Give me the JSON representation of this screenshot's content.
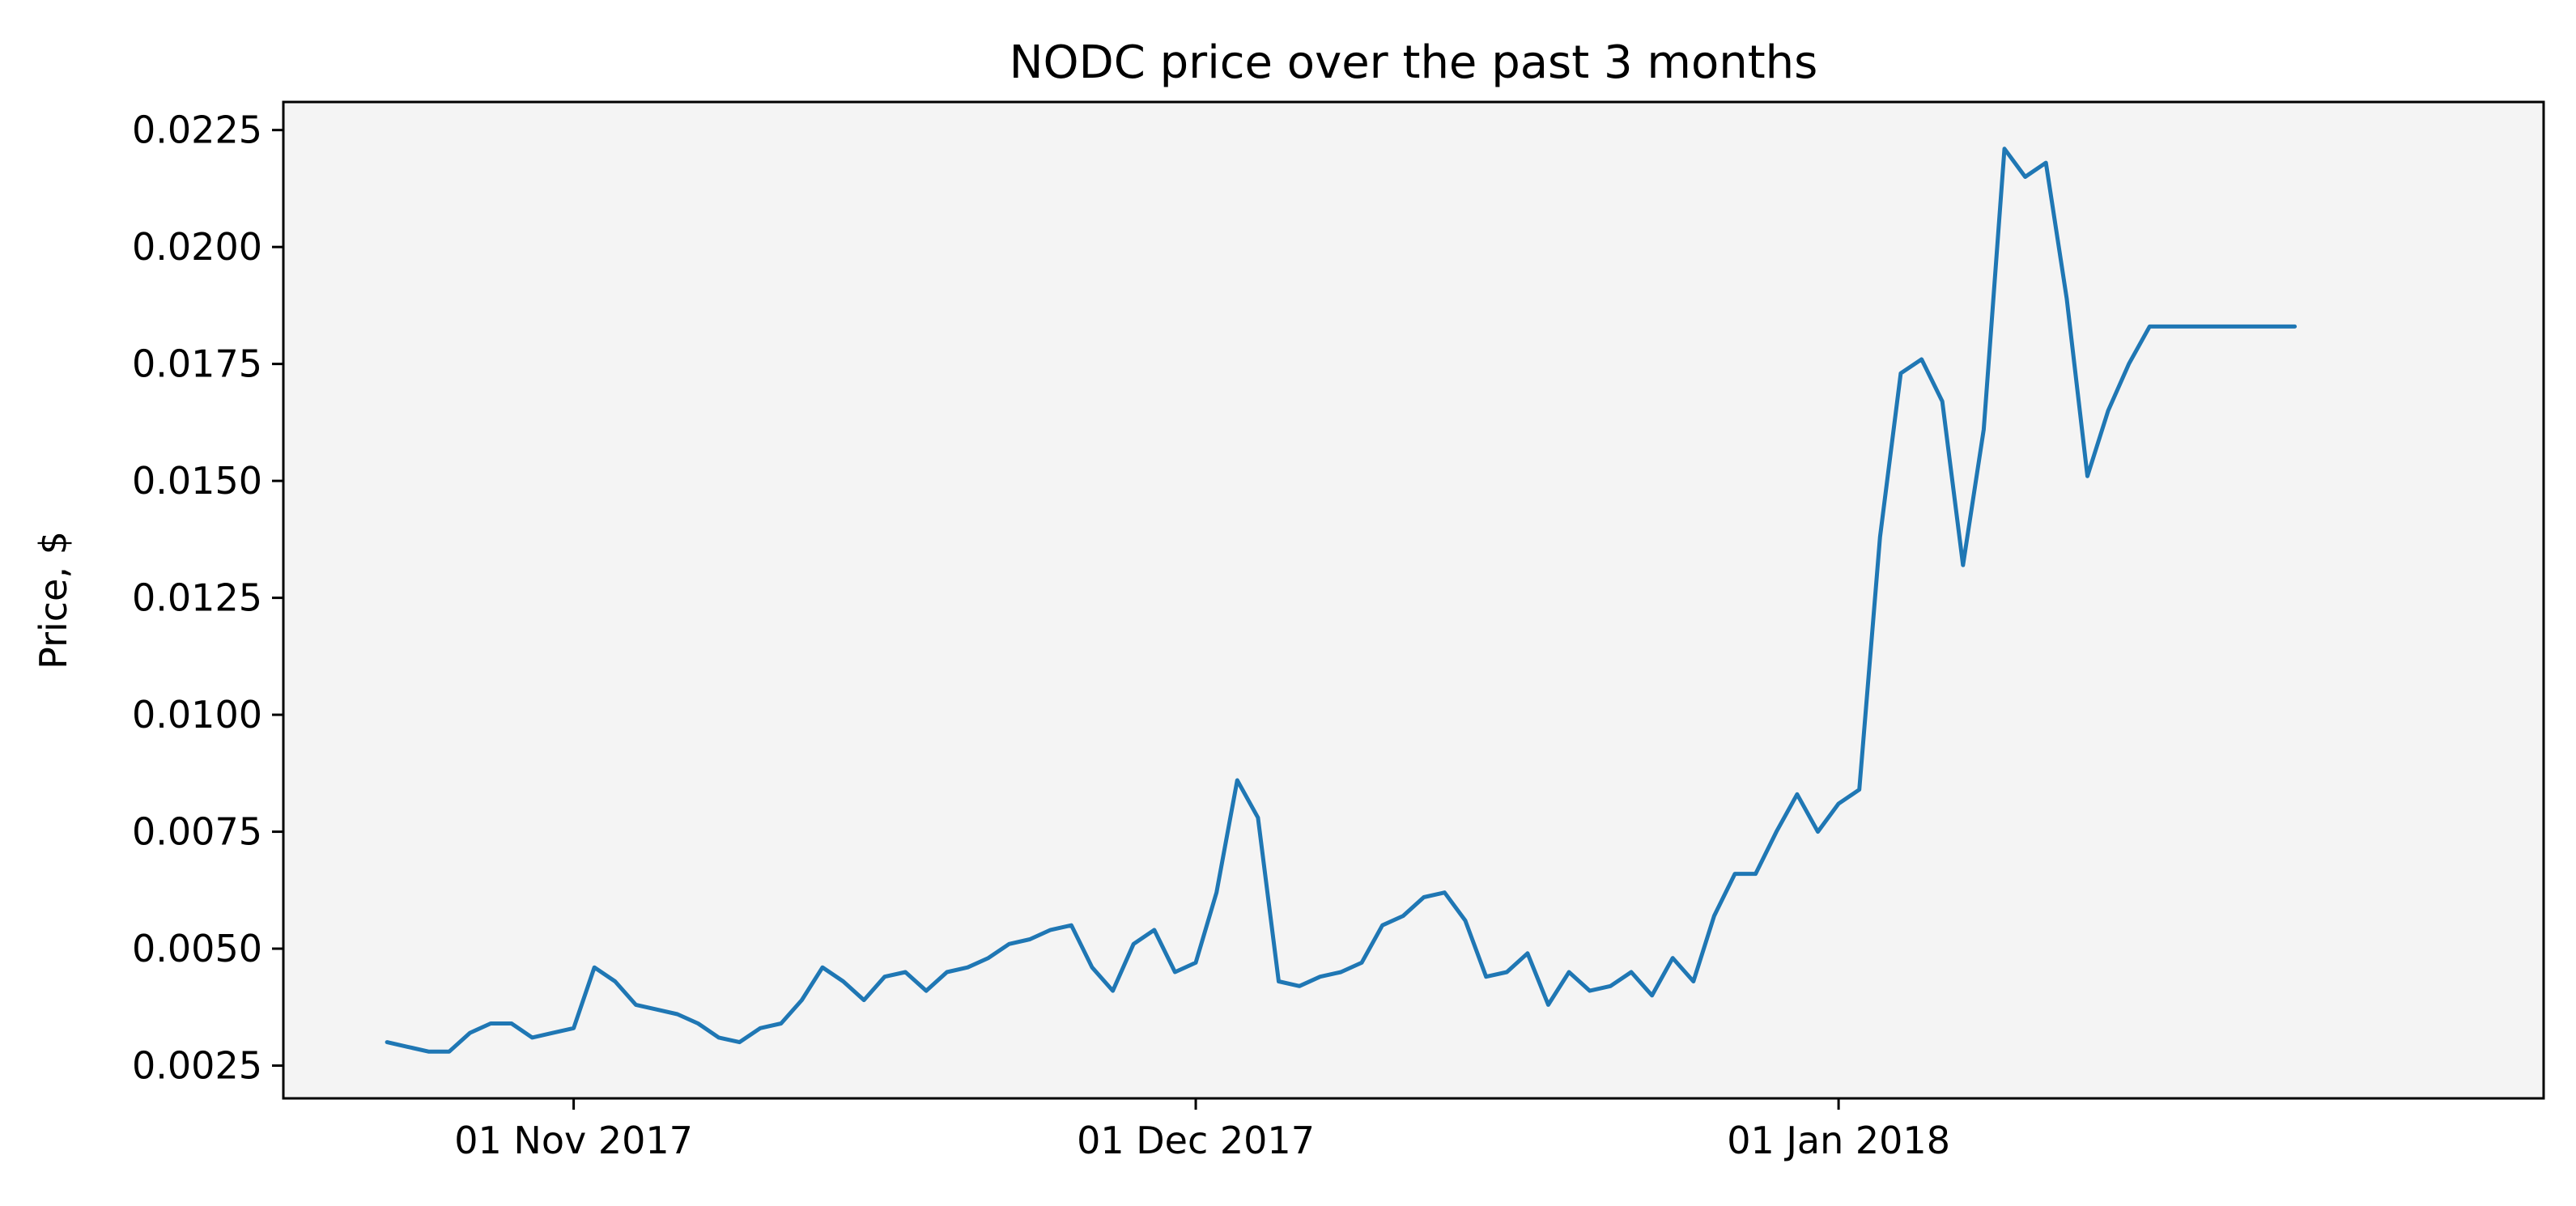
{
  "chart_data": {
    "type": "line",
    "title": "NODC price over the past 3 months",
    "xlabel": "",
    "ylabel": "Price, $",
    "grid": false,
    "legend": "none",
    "colors": {
      "line": "#1f77b4",
      "plot_bg": "#f4f4f4",
      "axes": "#000000"
    },
    "xlim": [
      "2017-10-18",
      "2018-02-04"
    ],
    "ylim": [
      0.0018,
      0.0231
    ],
    "x_ticks": [
      {
        "date": "2017-11-01",
        "label": "01 Nov 2017"
      },
      {
        "date": "2017-12-01",
        "label": "01 Dec 2017"
      },
      {
        "date": "2018-01-01",
        "label": "01 Jan 2018"
      }
    ],
    "y_ticks": [
      {
        "value": 0.0025,
        "label": "0.0025"
      },
      {
        "value": 0.005,
        "label": "0.0050"
      },
      {
        "value": 0.0075,
        "label": "0.0075"
      },
      {
        "value": 0.01,
        "label": "0.0100"
      },
      {
        "value": 0.0125,
        "label": "0.0125"
      },
      {
        "value": 0.015,
        "label": "0.0150"
      },
      {
        "value": 0.0175,
        "label": "0.0175"
      },
      {
        "value": 0.02,
        "label": "0.0200"
      },
      {
        "value": 0.0225,
        "label": "0.0225"
      }
    ],
    "series": [
      {
        "x": [
          "2017-10-23",
          "2017-10-24",
          "2017-10-25",
          "2017-10-26",
          "2017-10-27",
          "2017-10-28",
          "2017-10-29",
          "2017-10-30",
          "2017-10-31",
          "2017-11-01",
          "2017-11-02",
          "2017-11-03",
          "2017-11-04",
          "2017-11-05",
          "2017-11-06",
          "2017-11-07",
          "2017-11-08",
          "2017-11-09",
          "2017-11-10",
          "2017-11-11",
          "2017-11-12",
          "2017-11-13",
          "2017-11-14",
          "2017-11-15",
          "2017-11-16",
          "2017-11-17",
          "2017-11-18",
          "2017-11-19",
          "2017-11-20",
          "2017-11-21",
          "2017-11-22",
          "2017-11-23",
          "2017-11-24",
          "2017-11-25",
          "2017-11-26",
          "2017-11-27",
          "2017-11-28",
          "2017-11-29",
          "2017-11-30",
          "2017-12-01",
          "2017-12-02",
          "2017-12-03",
          "2017-12-04",
          "2017-12-05",
          "2017-12-06",
          "2017-12-07",
          "2017-12-08",
          "2017-12-09",
          "2017-12-10",
          "2017-12-11",
          "2017-12-12",
          "2017-12-13",
          "2017-12-14",
          "2017-12-15",
          "2017-12-16",
          "2017-12-17",
          "2017-12-18",
          "2017-12-19",
          "2017-12-20",
          "2017-12-21",
          "2017-12-22",
          "2017-12-23",
          "2017-12-24",
          "2017-12-25",
          "2017-12-26",
          "2017-12-27",
          "2017-12-28",
          "2017-12-29",
          "2017-12-30",
          "2017-12-31",
          "2018-01-01",
          "2018-01-02",
          "2018-01-03",
          "2018-01-04",
          "2018-01-05",
          "2018-01-06",
          "2018-01-07",
          "2018-01-08",
          "2018-01-09",
          "2018-01-10",
          "2018-01-11",
          "2018-01-12",
          "2018-01-13",
          "2018-01-14",
          "2018-01-15",
          "2018-01-16",
          "2018-01-17",
          "2018-01-18",
          "2018-01-19",
          "2018-01-20",
          "2018-01-21",
          "2018-01-22",
          "2018-01-23"
        ],
        "values": [
          0.003,
          0.0029,
          0.0028,
          0.0028,
          0.0032,
          0.0034,
          0.0034,
          0.0031,
          0.0032,
          0.0033,
          0.0046,
          0.0043,
          0.0038,
          0.0037,
          0.0036,
          0.0034,
          0.0031,
          0.003,
          0.0033,
          0.0034,
          0.0039,
          0.0046,
          0.0043,
          0.0039,
          0.0044,
          0.0045,
          0.0041,
          0.0045,
          0.0046,
          0.0048,
          0.0051,
          0.0052,
          0.0054,
          0.0055,
          0.0046,
          0.0041,
          0.0051,
          0.0054,
          0.0045,
          0.0047,
          0.0062,
          0.0086,
          0.0078,
          0.0043,
          0.0042,
          0.0044,
          0.0045,
          0.0047,
          0.0055,
          0.0057,
          0.0061,
          0.0062,
          0.0056,
          0.0044,
          0.0045,
          0.0049,
          0.0038,
          0.0045,
          0.0041,
          0.0042,
          0.0045,
          0.004,
          0.0048,
          0.0043,
          0.0057,
          0.0066,
          0.0066,
          0.0075,
          0.0083,
          0.0075,
          0.0081,
          0.0084,
          0.0138,
          0.0173,
          0.0176,
          0.0167,
          0.0132,
          0.0161,
          0.0221,
          0.0215,
          0.0218,
          0.0189,
          0.0151,
          0.0165,
          0.0175,
          0.0183,
          0.0183,
          0.0183,
          0.0183,
          0.0183,
          0.0183,
          0.0183,
          0.0183
        ]
      }
    ]
  }
}
